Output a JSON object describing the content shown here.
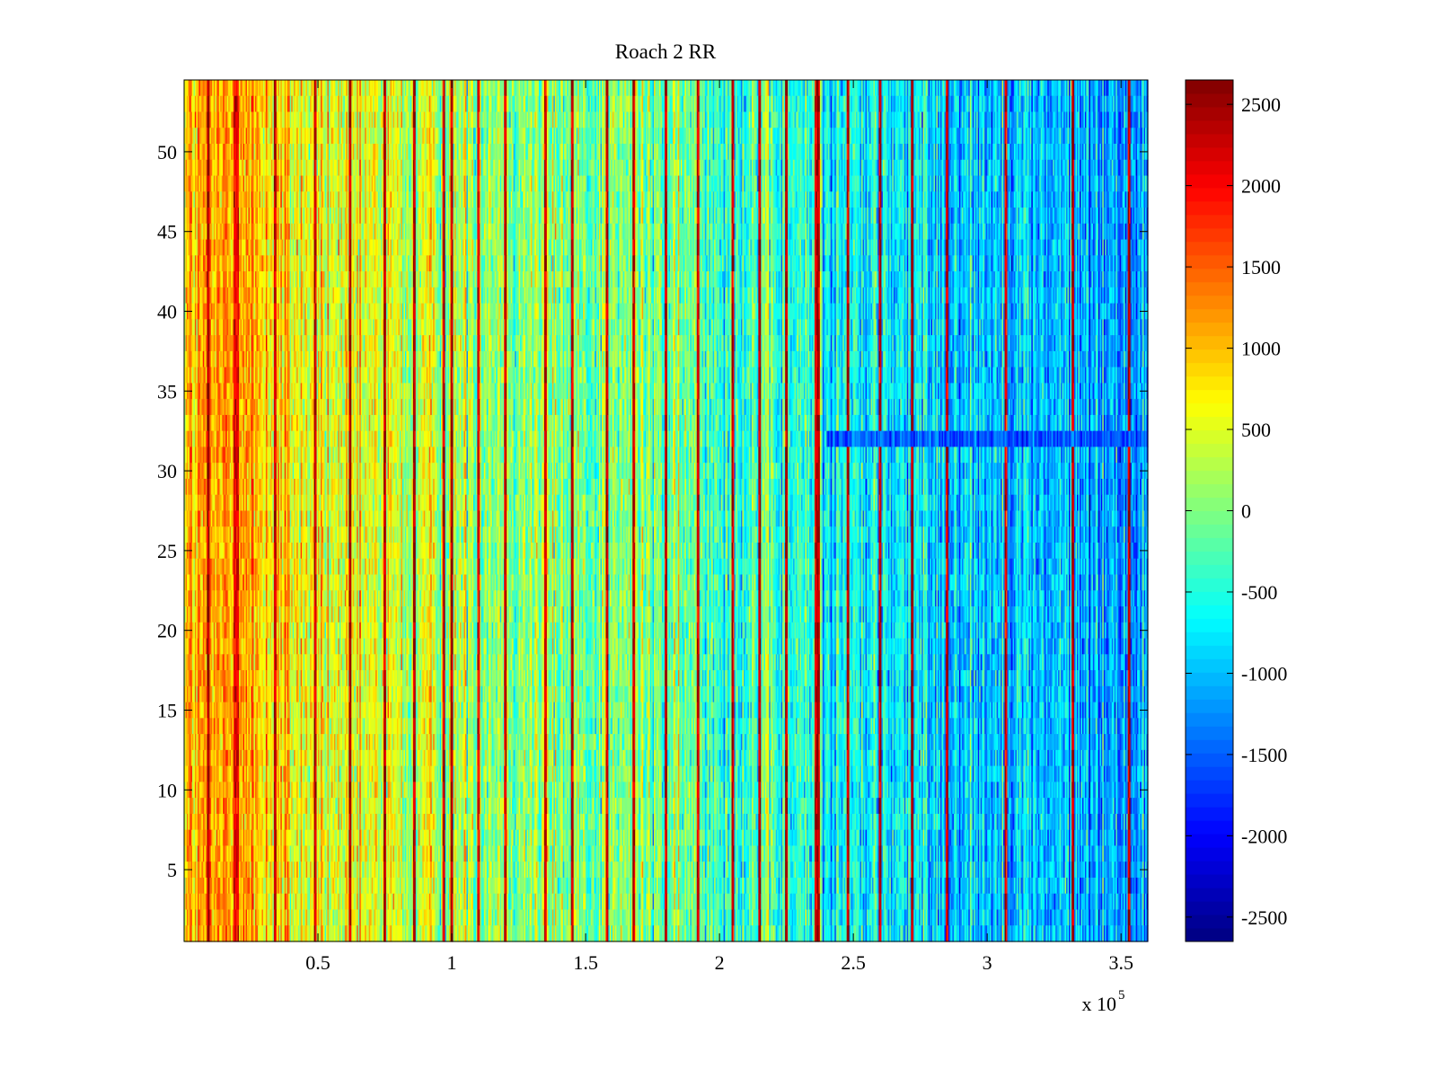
{
  "chart_data": {
    "type": "heatmap",
    "title": "Roach 2 RR",
    "xlabel": "",
    "ylabel": "",
    "x_exponent_label": "x 10",
    "x_exponent": "5",
    "xlim": [
      0,
      3.6
    ],
    "ylim": [
      0.5,
      54.5
    ],
    "x_ticks": [
      0.5,
      1,
      1.5,
      2,
      2.5,
      3,
      3.5
    ],
    "x_tick_labels": [
      "0.5",
      "1",
      "1.5",
      "2",
      "2.5",
      "3",
      "3.5"
    ],
    "y_ticks": [
      5,
      10,
      15,
      20,
      25,
      30,
      35,
      40,
      45,
      50
    ],
    "y_tick_labels": [
      "5",
      "10",
      "15",
      "20",
      "25",
      "30",
      "35",
      "40",
      "45",
      "50"
    ],
    "rows": 54,
    "columns_approx": 720,
    "colormap": "jet",
    "clim": [
      -2650,
      2650
    ],
    "colorbar_ticks": [
      -2500,
      -2000,
      -1500,
      -1000,
      -500,
      0,
      500,
      1000,
      1500,
      2000,
      2500
    ],
    "colorbar_tick_labels": [
      "-2500",
      "-2000",
      "-1500",
      "-1000",
      "-500",
      "0",
      "500",
      "1000",
      "1500",
      "2000",
      "2500"
    ],
    "column_trend_x": [
      0,
      0.2,
      0.5,
      1.0,
      1.5,
      2.0,
      2.4,
      2.8,
      3.2,
      3.6
    ],
    "column_trend_value": [
      900,
      1100,
      500,
      300,
      0,
      -200,
      -600,
      -800,
      -1000,
      -1150
    ],
    "strong_stripes_x": [
      0.09,
      0.19,
      0.2,
      0.34,
      0.49,
      0.62,
      0.75,
      0.86,
      0.97,
      1.0,
      1.1,
      1.2,
      1.35,
      1.45,
      1.58,
      1.68,
      1.8,
      1.92,
      2.05,
      2.15,
      2.25,
      2.36,
      2.37,
      2.48,
      2.6,
      2.72,
      2.85,
      3.07,
      3.32,
      3.53
    ],
    "strong_stripe_value": 2300,
    "anomaly_row_32_value": -1500,
    "anomaly_row_32_from_x": 2.4
  }
}
